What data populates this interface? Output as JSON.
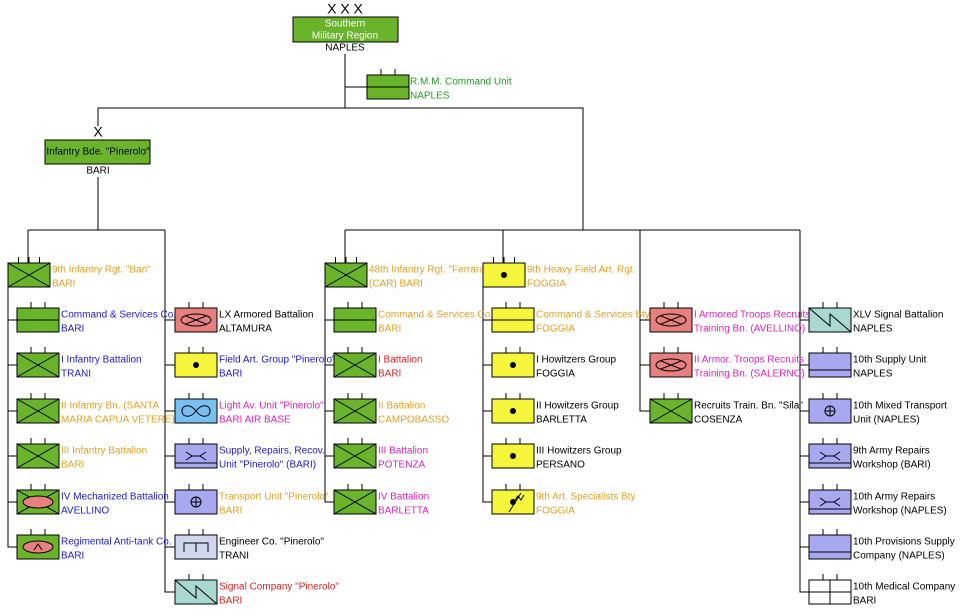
{
  "hq": {
    "echelon": "X X X",
    "lines": [
      "Southern",
      "Military Region"
    ],
    "location": "NAPLES"
  },
  "command_unit": {
    "lines": [
      "R.M.M. Command Unit",
      "NAPLES"
    ]
  },
  "brigade": {
    "echelon": "X",
    "name": "Infantry Bde. \"Pinerolo\"",
    "location": "BARI"
  },
  "groups": [
    {
      "units": [
        {
          "lines": [
            "9th Infantry Rgt. \"Bari\"",
            "BARI"
          ]
        },
        {
          "lines": [
            "Command & Services Co.",
            "BARI"
          ]
        },
        {
          "lines": [
            "I Infantry Battalion",
            "TRANI"
          ]
        },
        {
          "lines": [
            "II Infantry Bn. (SANTA",
            "MARIA CAPUA VETERE)"
          ]
        },
        {
          "lines": [
            "III Infantry Battalion",
            "BARI"
          ]
        },
        {
          "lines": [
            "IV Mechanized Battalion",
            "AVELLINO"
          ]
        },
        {
          "lines": [
            "Regimental Anti-tank Co.",
            "BARI"
          ]
        }
      ]
    },
    {
      "units": [
        {
          "lines": [
            "LX Armored Battalion",
            "ALTAMURA"
          ]
        },
        {
          "lines": [
            "Field Art. Group \"Pinerolo\"",
            "BARI"
          ]
        },
        {
          "lines": [
            "Light Av. Unit \"Pinerolo\"",
            "BARI AIR BASE"
          ]
        },
        {
          "lines": [
            "Supply, Repairs, Recov.",
            "Unit \"Pinerolo\" (BARI)"
          ]
        },
        {
          "lines": [
            "Transport Unit \"Pinerolo\"",
            "BARI"
          ]
        },
        {
          "lines": [
            "Engineer Co. \"Pinerolo\"",
            "TRANI"
          ]
        },
        {
          "lines": [
            "Signal Company \"Pinerolo\"",
            "BARI"
          ]
        }
      ]
    },
    {
      "units": [
        {
          "lines": [
            "48th Infantry Rgt. \"Ferrara\"",
            "(CAR) BARI"
          ]
        },
        {
          "lines": [
            "Command & Services Co.",
            "BARI"
          ]
        },
        {
          "lines": [
            "I Battalion",
            "BARI"
          ]
        },
        {
          "lines": [
            "II Battalion",
            "CAMPOBASSO"
          ]
        },
        {
          "lines": [
            "III Battalion",
            "POTENZA"
          ]
        },
        {
          "lines": [
            "IV Battalion",
            "BARLETTA"
          ]
        }
      ]
    },
    {
      "units": [
        {
          "lines": [
            "9th Heavy Field Art. Rgt.",
            "FOGGIA"
          ]
        },
        {
          "lines": [
            "Command & Services Bty",
            "FOGGIA"
          ]
        },
        {
          "lines": [
            "I Howitzers Group",
            "FOGGIA"
          ]
        },
        {
          "lines": [
            "II Howitzers Group",
            "BARLETTA"
          ]
        },
        {
          "lines": [
            "III Howitzers Group",
            "PERSANO"
          ]
        },
        {
          "lines": [
            "9th Art. Specialists Bty",
            "FOGGIA"
          ]
        }
      ]
    },
    {
      "units": [
        {
          "lines": [
            "I Armored Troops Recruits",
            "Training Bn. (AVELLINO)"
          ]
        },
        {
          "lines": [
            "II Armor. Troops Recruits",
            "Training Bn. (SALERNO)"
          ]
        },
        {
          "lines": [
            "Recruits Train. Bn. \"Sila\"",
            "COSENZA"
          ]
        }
      ]
    },
    {
      "units": [
        {
          "lines": [
            "XLV Signal Battalion",
            "NAPLES"
          ]
        },
        {
          "lines": [
            "10th Supply Unit",
            "NAPLES"
          ]
        },
        {
          "lines": [
            "10th Mixed Transport",
            "Unit (NAPLES)"
          ]
        },
        {
          "lines": [
            "9th Army Repairs",
            "Workshop (BARI)"
          ]
        },
        {
          "lines": [
            "10th Army Repairs",
            "Workshop (NAPLES)"
          ]
        },
        {
          "lines": [
            "10th Provisions Supply",
            "Company (NAPLES)"
          ]
        },
        {
          "lines": [
            "10th Medical Company",
            "BARI"
          ]
        }
      ]
    }
  ]
}
